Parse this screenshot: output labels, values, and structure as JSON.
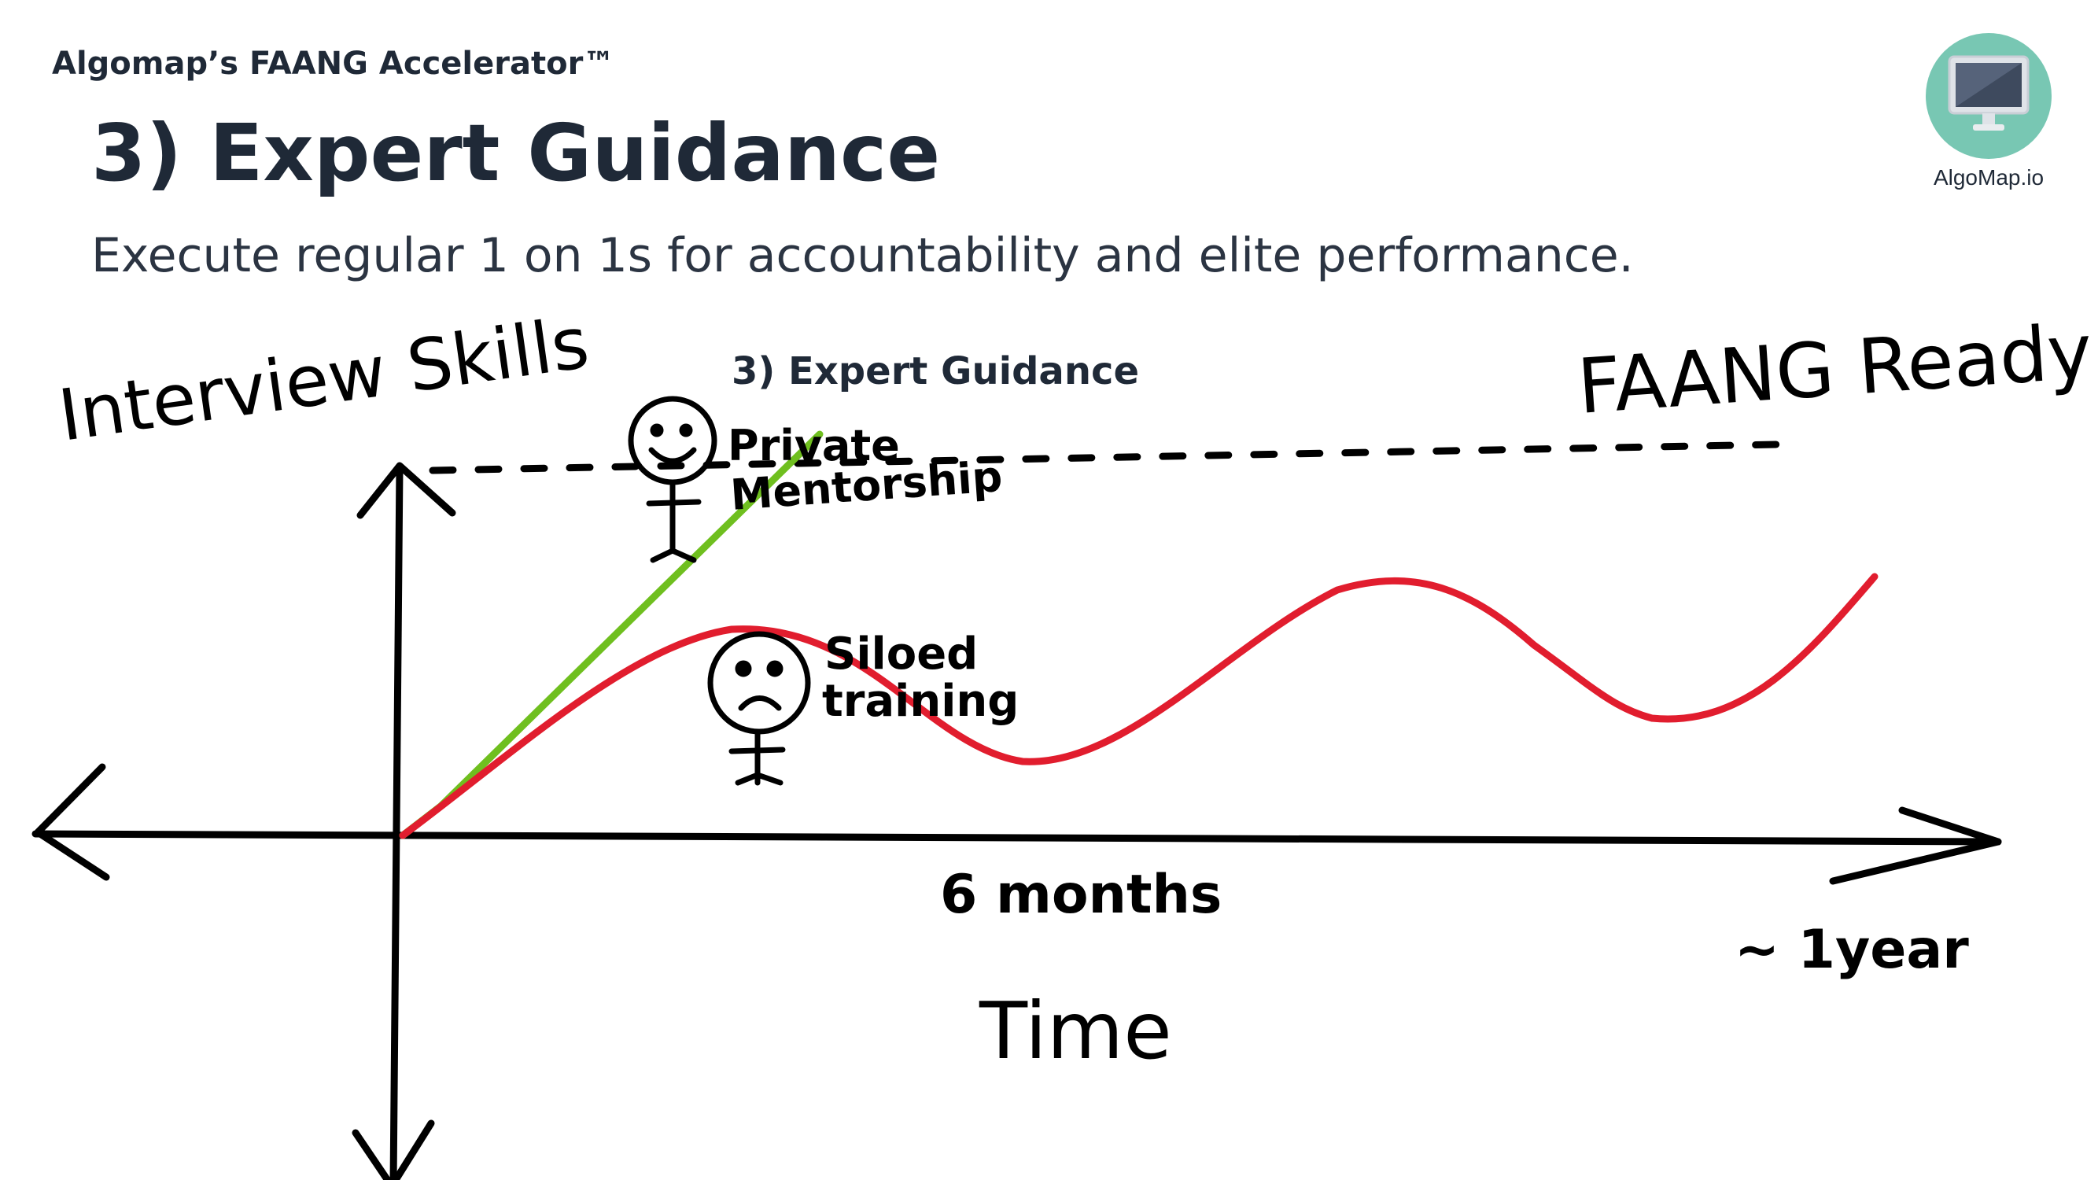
{
  "header": {
    "brand": "Algomap’s FAANG Accelerator™",
    "title": "3) Expert Guidance",
    "subtitle": "Execute regular 1 on 1s for accountability and elite performance."
  },
  "logo": {
    "label": "AlgoMap.io",
    "icon": "monitor-icon",
    "color": "#78c7b3"
  },
  "diagram": {
    "y_label": "Interview Skills",
    "inline_label": "3) Expert Guidance",
    "goal_label": "FAANG Ready",
    "mentorship_label_1": "Private",
    "mentorship_label_2": "Mentorship",
    "siloed_label_1": "Siloed",
    "siloed_label_2": "training",
    "mid_tick": "6 months",
    "end_tick": "~ 1year",
    "x_label": "Time",
    "colors": {
      "mentorship_line": "#6fbf1f",
      "siloed_line": "#e11d2e",
      "ink": "#000000"
    }
  }
}
